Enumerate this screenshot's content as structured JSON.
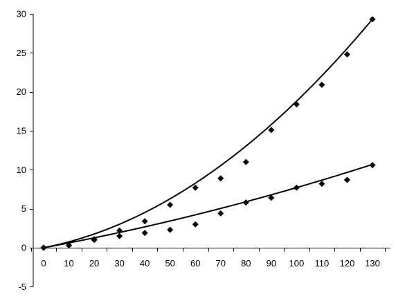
{
  "chart_data": {
    "type": "scatter",
    "title": "",
    "xlabel": "",
    "ylabel": "",
    "xlim": [
      -5,
      135
    ],
    "ylim": [
      -5,
      30
    ],
    "x_ticks": [
      0,
      10,
      20,
      30,
      40,
      50,
      60,
      70,
      80,
      90,
      100,
      110,
      120,
      130
    ],
    "y_ticks": [
      -5,
      0,
      5,
      10,
      15,
      20,
      25,
      30
    ],
    "grid": false,
    "legend": "none",
    "marker_shape": "diamond",
    "colors": {
      "marker": "#000000",
      "line": "#000000",
      "axis": "#000000",
      "background": "#ffffff"
    },
    "series": [
      {
        "values": [
          [
            0,
            0.0
          ],
          [
            10,
            0.3
          ],
          [
            20,
            1.1
          ],
          [
            30,
            2.2
          ],
          [
            40,
            3.4
          ],
          [
            50,
            5.5
          ],
          [
            60,
            7.7
          ],
          [
            70,
            8.9
          ],
          [
            80,
            11.0
          ],
          [
            90,
            15.1
          ],
          [
            100,
            18.4
          ],
          [
            110,
            20.9
          ],
          [
            120,
            24.8
          ],
          [
            130,
            29.3
          ]
        ],
        "fit_coefficients": [
          0.00125,
          0.063,
          0.0
        ]
      },
      {
        "values": [
          [
            0,
            0.0
          ],
          [
            10,
            0.3
          ],
          [
            20,
            1.0
          ],
          [
            30,
            1.5
          ],
          [
            40,
            1.9
          ],
          [
            50,
            2.3
          ],
          [
            60,
            3.0
          ],
          [
            70,
            4.4
          ],
          [
            80,
            5.8
          ],
          [
            90,
            6.4
          ],
          [
            100,
            7.7
          ],
          [
            110,
            8.2
          ],
          [
            120,
            8.7
          ],
          [
            130,
            10.6
          ]
        ],
        "fit_coefficients": [
          0.00017,
          0.0601,
          0.0
        ]
      }
    ]
  }
}
